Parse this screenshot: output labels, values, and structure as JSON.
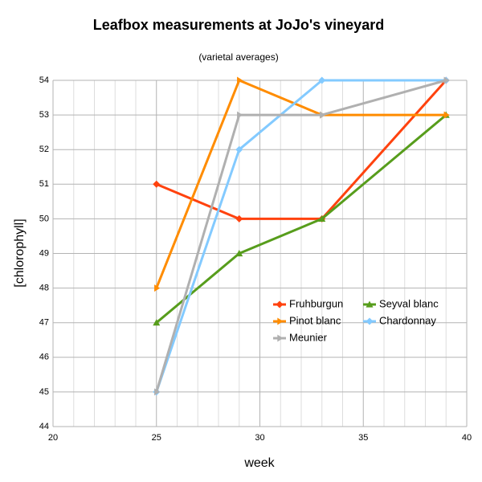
{
  "chart_data": {
    "type": "line",
    "title": "Leafbox measurements at JoJo's vineyard",
    "subtitle": "(varietal averages)",
    "x_label": "week",
    "y_label": "[chlorophyll]",
    "xlim": [
      20,
      40
    ],
    "xticks": [
      20,
      25,
      30,
      35,
      40
    ],
    "ylim": [
      44,
      54
    ],
    "yticks": [
      44,
      45,
      46,
      47,
      48,
      49,
      50,
      51,
      52,
      53,
      54
    ],
    "grid": true,
    "x": [
      25,
      29,
      33,
      39
    ],
    "series": [
      {
        "name": "Fruhburgun",
        "color": "#ff420e",
        "marker": "diamond",
        "values": [
          51,
          50,
          50,
          54
        ]
      },
      {
        "name": "Seyval blanc",
        "color": "#579d1c",
        "marker": "triangle",
        "values": [
          47,
          49,
          50,
          53
        ]
      },
      {
        "name": "Pinot blanc",
        "color": "#ff8c00",
        "marker": "arrow",
        "values": [
          48,
          54,
          53,
          53
        ]
      },
      {
        "name": "Chardonnay",
        "color": "#83caff",
        "marker": "diamond",
        "values": [
          45,
          52,
          54,
          54
        ]
      },
      {
        "name": "Meunier",
        "color": "#b0b0b0",
        "marker": "arrow",
        "values": [
          45,
          53,
          53,
          54
        ]
      }
    ]
  }
}
